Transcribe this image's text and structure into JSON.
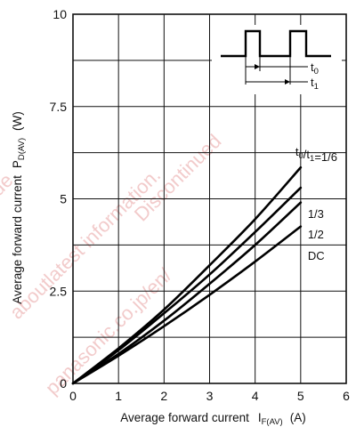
{
  "chart_data": {
    "type": "line",
    "x_axis": {
      "label": "Average forward current",
      "symbol_main": "I",
      "symbol_sub": "F(AV)",
      "unit": "(A)",
      "range": [
        0,
        6
      ],
      "ticks": [
        0,
        1,
        2,
        3,
        4,
        5,
        6
      ]
    },
    "y_axis": {
      "label": "Average forward current",
      "symbol_main": "P",
      "symbol_sub": "D(AV)",
      "unit": "(W)",
      "range": [
        0,
        10
      ],
      "ticks": [
        {
          "value": 0,
          "label": "0"
        },
        {
          "value": 2.5,
          "label": "2.5"
        },
        {
          "value": 5,
          "label": "5"
        },
        {
          "value": 7.5,
          "label": "7.5"
        },
        {
          "value": 10,
          "label": "10"
        }
      ]
    },
    "grid": true,
    "series": [
      {
        "label_parts": [
          {
            "t": "t"
          },
          {
            "t": "0",
            "sub": true
          },
          {
            "t": "/t"
          },
          {
            "t": "1",
            "sub": true
          },
          {
            "t": "=1/6"
          }
        ],
        "points": [
          [
            0,
            0
          ],
          [
            1,
            0.95
          ],
          [
            2,
            2.0
          ],
          [
            3,
            3.2
          ],
          [
            4,
            4.45
          ],
          [
            5,
            5.85
          ]
        ]
      },
      {
        "label_parts": [
          {
            "t": "1/3"
          }
        ],
        "points": [
          [
            0,
            0
          ],
          [
            1,
            0.9
          ],
          [
            2,
            1.9
          ],
          [
            3,
            2.95
          ],
          [
            4,
            4.1
          ],
          [
            5,
            5.3
          ]
        ]
      },
      {
        "label_parts": [
          {
            "t": "1/2"
          }
        ],
        "points": [
          [
            0,
            0
          ],
          [
            1,
            0.8
          ],
          [
            2,
            1.7
          ],
          [
            3,
            2.7
          ],
          [
            4,
            3.75
          ],
          [
            5,
            4.9
          ]
        ]
      },
      {
        "label_parts": [
          {
            "t": "DC"
          }
        ],
        "points": [
          [
            0,
            0
          ],
          [
            1,
            0.75
          ],
          [
            2,
            1.55
          ],
          [
            3,
            2.4
          ],
          [
            4,
            3.3
          ],
          [
            5,
            4.25
          ]
        ]
      }
    ],
    "inset_labels": {
      "t0": {
        "main": "t",
        "sub": "0"
      },
      "t1": {
        "main": "t",
        "sub": "1"
      }
    },
    "watermark": [
      "avinue",
      "aboutlatest information.",
      "panasonic.co.jp/en/",
      "Discontinued"
    ]
  }
}
